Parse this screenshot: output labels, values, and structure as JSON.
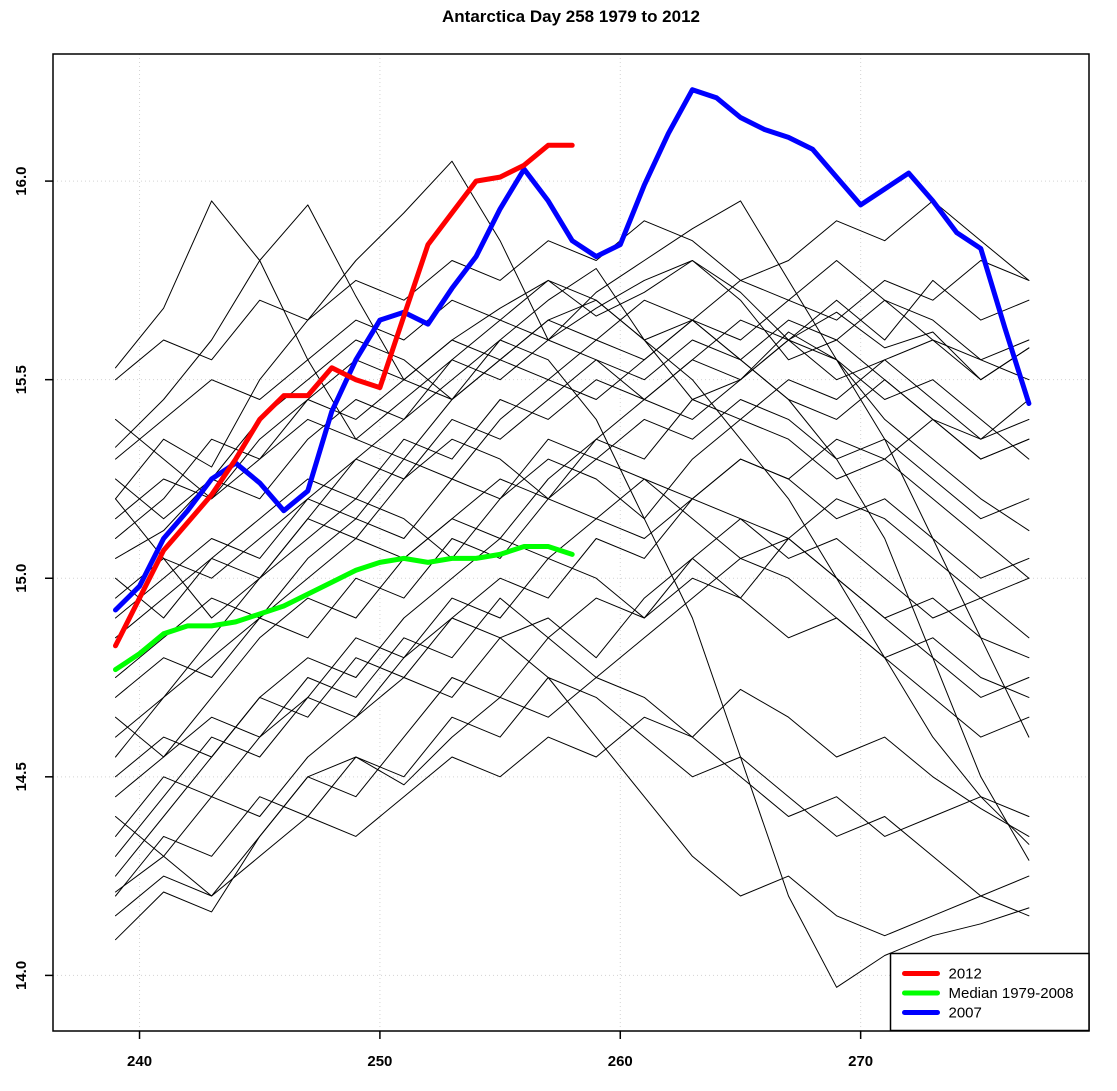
{
  "title": "Antarctica Day 258 1979 to 2012",
  "chart_data": {
    "type": "line",
    "title": "Antarctica Day 258 1979 to 2012",
    "xlabel": "",
    "ylabel": "",
    "x_ticks": [
      240,
      250,
      260,
      270
    ],
    "y_ticks": [
      14.0,
      14.5,
      15.0,
      15.5,
      16.0
    ],
    "y_tick_labels": [
      "14.0",
      "14.5",
      "15.0",
      "15.5",
      "16.0"
    ],
    "x_tick_labels": [
      "240",
      "250",
      "260",
      "270"
    ],
    "xlim": [
      236.4,
      279.5
    ],
    "ylim": [
      13.86,
      16.32
    ],
    "grid": true,
    "grid_color": "#d3d3d3",
    "axis_color": "#000000",
    "background_line_color": "#000000",
    "legend": {
      "position": "bottomright",
      "entries": [
        {
          "label": "2012",
          "color": "#ff0000"
        },
        {
          "label": "Median 1979-2008",
          "color": "#00ff00"
        },
        {
          "label": "2007",
          "color": "#0000ff"
        }
      ]
    },
    "series": [
      {
        "name": "2007",
        "color": "#0000ff",
        "width": 5,
        "x_start": 239,
        "x_step": 1,
        "values": [
          14.92,
          14.98,
          15.1,
          15.17,
          15.25,
          15.29,
          15.24,
          15.17,
          15.22,
          15.42,
          15.55,
          15.65,
          15.67,
          15.64,
          15.73,
          15.81,
          15.93,
          16.03,
          15.95,
          15.85,
          15.81,
          15.84,
          15.99,
          16.12,
          16.23,
          16.21,
          16.16,
          16.13,
          16.11,
          16.08,
          16.01,
          15.94,
          15.98,
          16.02,
          15.95,
          15.87,
          15.83,
          15.63,
          15.44
        ]
      },
      {
        "name": "Median 1979-2008",
        "color": "#00ff00",
        "width": 5,
        "x_start": 239,
        "x_step": 1,
        "values": [
          14.77,
          14.81,
          14.86,
          14.88,
          14.88,
          14.89,
          14.91,
          14.93,
          14.96,
          14.99,
          15.02,
          15.04,
          15.05,
          15.04,
          15.05,
          15.05,
          15.06,
          15.08,
          15.08,
          15.06
        ]
      },
      {
        "name": "2012",
        "color": "#ff0000",
        "width": 5,
        "x_start": 239,
        "x_step": 1,
        "values": [
          14.83,
          14.95,
          15.07,
          15.14,
          15.21,
          15.3,
          15.4,
          15.46,
          15.46,
          15.53,
          15.5,
          15.48,
          15.66,
          15.84,
          15.92,
          16.0,
          16.01,
          16.04,
          16.09,
          16.09
        ]
      }
    ],
    "background_series": {
      "note": "thin black lines, one per year 1979-2011 (approximate values read from plot)",
      "color": "#000000",
      "width": 1,
      "x_start": 239,
      "x_step": 2,
      "lines": [
        [
          15.53,
          15.68,
          15.95,
          15.8,
          15.55,
          15.35,
          15.3,
          15.45,
          15.6,
          15.7,
          15.78,
          15.6,
          15.45,
          15.5,
          15.62,
          15.55,
          15.4,
          15.3,
          15.2,
          15.12
        ],
        [
          15.33,
          15.45,
          15.6,
          15.8,
          15.94,
          15.71,
          15.5,
          15.6,
          15.68,
          15.75,
          15.66,
          15.72,
          15.8,
          15.72,
          15.6,
          15.67,
          15.58,
          15.62,
          15.5,
          15.58
        ],
        [
          15.2,
          15.35,
          15.28,
          15.5,
          15.65,
          15.8,
          15.92,
          16.05,
          15.85,
          15.6,
          15.68,
          15.75,
          15.8,
          15.7,
          15.55,
          15.6,
          15.5,
          15.4,
          15.3,
          15.35
        ],
        [
          15.05,
          15.12,
          15.25,
          15.2,
          15.35,
          15.45,
          15.4,
          15.55,
          15.65,
          15.6,
          15.72,
          15.8,
          15.88,
          15.95,
          15.75,
          15.55,
          15.35,
          15.1,
          14.85,
          14.6
        ],
        [
          14.55,
          14.7,
          14.85,
          15.0,
          15.15,
          15.3,
          15.4,
          15.5,
          15.6,
          15.55,
          15.4,
          15.15,
          14.9,
          14.55,
          14.2,
          13.97,
          14.05,
          14.1,
          14.13,
          14.17
        ],
        [
          14.09,
          14.21,
          14.16,
          14.35,
          14.5,
          14.55,
          14.48,
          14.6,
          14.7,
          14.65,
          14.75,
          14.7,
          14.6,
          14.72,
          14.65,
          14.55,
          14.6,
          14.5,
          14.42,
          14.35
        ],
        [
          14.21,
          14.3,
          14.45,
          14.4,
          14.55,
          14.65,
          14.75,
          14.7,
          14.85,
          14.9,
          14.8,
          14.95,
          15.05,
          14.95,
          15.1,
          15.0,
          14.9,
          14.95,
          14.85,
          14.8
        ],
        [
          14.5,
          14.6,
          14.55,
          14.7,
          14.8,
          14.75,
          14.9,
          15.0,
          15.1,
          15.05,
          15.15,
          15.1,
          15.2,
          15.15,
          15.05,
          15.1,
          15.0,
          14.9,
          14.95,
          14.85
        ],
        [
          14.75,
          14.85,
          14.95,
          14.9,
          15.05,
          15.15,
          15.1,
          15.25,
          15.2,
          15.35,
          15.3,
          15.4,
          15.35,
          15.45,
          15.4,
          15.3,
          15.35,
          15.25,
          15.15,
          15.2
        ],
        [
          15.0,
          14.9,
          15.05,
          15.15,
          15.25,
          15.2,
          15.35,
          15.3,
          15.45,
          15.4,
          15.5,
          15.45,
          15.55,
          15.5,
          15.6,
          15.55,
          15.45,
          15.5,
          15.4,
          15.3
        ],
        [
          15.2,
          15.05,
          14.9,
          15.0,
          15.1,
          15.2,
          15.15,
          15.05,
          15.2,
          15.3,
          15.25,
          15.15,
          15.3,
          15.4,
          15.35,
          15.25,
          15.3,
          15.2,
          15.1,
          15.0
        ],
        [
          14.3,
          14.45,
          14.6,
          14.55,
          14.7,
          14.85,
          14.8,
          14.95,
          14.9,
          15.05,
          15.0,
          14.9,
          15.05,
          15.15,
          15.1,
          15.0,
          14.9,
          14.8,
          14.7,
          14.75
        ],
        [
          14.65,
          14.55,
          14.7,
          14.85,
          14.95,
          14.9,
          15.05,
          15.15,
          15.1,
          15.25,
          15.35,
          15.3,
          15.45,
          15.4,
          15.5,
          15.45,
          15.55,
          15.6,
          15.5,
          15.58
        ],
        [
          15.1,
          15.2,
          15.35,
          15.3,
          15.45,
          15.55,
          15.5,
          15.6,
          15.55,
          15.65,
          15.6,
          15.7,
          15.65,
          15.55,
          15.45,
          15.3,
          15.1,
          14.8,
          14.5,
          14.29
        ],
        [
          14.4,
          14.3,
          14.2,
          14.35,
          14.5,
          14.45,
          14.6,
          14.75,
          14.7,
          14.85,
          14.95,
          14.9,
          15.0,
          14.95,
          14.85,
          14.9,
          14.8,
          14.7,
          14.6,
          14.65
        ],
        [
          14.2,
          14.35,
          14.3,
          14.45,
          14.4,
          14.55,
          14.5,
          14.65,
          14.6,
          14.75,
          14.7,
          14.6,
          14.5,
          14.55,
          14.45,
          14.35,
          14.4,
          14.3,
          14.2,
          14.15
        ],
        [
          14.85,
          14.95,
          15.05,
          15.0,
          15.15,
          15.1,
          15.25,
          15.35,
          15.3,
          15.2,
          15.35,
          15.45,
          15.4,
          15.5,
          15.6,
          15.7,
          15.6,
          15.75,
          15.65,
          15.7
        ],
        [
          15.3,
          15.4,
          15.5,
          15.45,
          15.55,
          15.65,
          15.6,
          15.7,
          15.65,
          15.75,
          15.7,
          15.6,
          15.5,
          15.35,
          15.2,
          15.0,
          14.8,
          14.6,
          14.45,
          14.33
        ],
        [
          14.95,
          15.05,
          15.0,
          15.1,
          15.2,
          15.15,
          15.3,
          15.25,
          15.4,
          15.5,
          15.45,
          15.55,
          15.65,
          15.6,
          15.7,
          15.65,
          15.75,
          15.7,
          15.8,
          15.75
        ],
        [
          14.45,
          14.55,
          14.65,
          14.6,
          14.75,
          14.7,
          14.85,
          14.8,
          14.95,
          14.85,
          14.75,
          14.85,
          14.95,
          15.05,
          15.0,
          14.9,
          14.8,
          14.85,
          14.75,
          14.7
        ],
        [
          15.4,
          15.3,
          15.2,
          15.3,
          15.4,
          15.35,
          15.45,
          15.55,
          15.5,
          15.6,
          15.55,
          15.45,
          15.55,
          15.65,
          15.6,
          15.5,
          15.55,
          15.45,
          15.35,
          15.4
        ],
        [
          14.6,
          14.7,
          14.8,
          14.9,
          14.85,
          15.0,
          14.95,
          15.1,
          15.05,
          15.2,
          15.15,
          15.25,
          15.2,
          15.3,
          15.25,
          15.15,
          15.2,
          15.1,
          15.0,
          15.05
        ],
        [
          14.35,
          14.5,
          14.45,
          14.6,
          14.7,
          14.65,
          14.8,
          14.9,
          14.85,
          14.75,
          14.6,
          14.45,
          14.3,
          14.2,
          14.25,
          14.15,
          14.1,
          14.15,
          14.2,
          14.25
        ],
        [
          15.15,
          15.25,
          15.2,
          15.35,
          15.45,
          15.4,
          15.5,
          15.45,
          15.55,
          15.5,
          15.6,
          15.55,
          15.65,
          15.75,
          15.7,
          15.8,
          15.7,
          15.6,
          15.55,
          15.6
        ],
        [
          14.7,
          14.8,
          14.75,
          14.9,
          15.0,
          15.1,
          15.05,
          15.15,
          15.25,
          15.2,
          15.3,
          15.25,
          15.15,
          15.05,
          15.1,
          15.2,
          15.15,
          15.05,
          14.95,
          15.0
        ],
        [
          14.25,
          14.4,
          14.55,
          14.7,
          14.65,
          14.8,
          14.75,
          14.9,
          15.0,
          14.95,
          15.1,
          15.05,
          15.2,
          15.3,
          15.25,
          15.35,
          15.3,
          15.4,
          15.35,
          15.45
        ],
        [
          15.5,
          15.6,
          15.55,
          15.7,
          15.65,
          15.75,
          15.7,
          15.8,
          15.75,
          15.85,
          15.8,
          15.9,
          15.85,
          15.75,
          15.8,
          15.9,
          15.85,
          15.95,
          15.85,
          15.75
        ],
        [
          14.9,
          15.0,
          15.1,
          15.05,
          15.2,
          15.3,
          15.25,
          15.4,
          15.35,
          15.45,
          15.55,
          15.5,
          15.6,
          15.55,
          15.45,
          15.4,
          15.5,
          15.4,
          15.3,
          15.35
        ],
        [
          14.15,
          14.25,
          14.2,
          14.3,
          14.4,
          14.35,
          14.45,
          14.55,
          14.5,
          14.6,
          14.55,
          14.65,
          14.6,
          14.5,
          14.4,
          14.45,
          14.35,
          14.4,
          14.45,
          14.4
        ],
        [
          15.25,
          15.15,
          15.25,
          15.4,
          15.5,
          15.6,
          15.55,
          15.45,
          15.55,
          15.65,
          15.7,
          15.6,
          15.65,
          15.55,
          15.65,
          15.6,
          15.7,
          15.65,
          15.55,
          15.5
        ]
      ]
    }
  }
}
